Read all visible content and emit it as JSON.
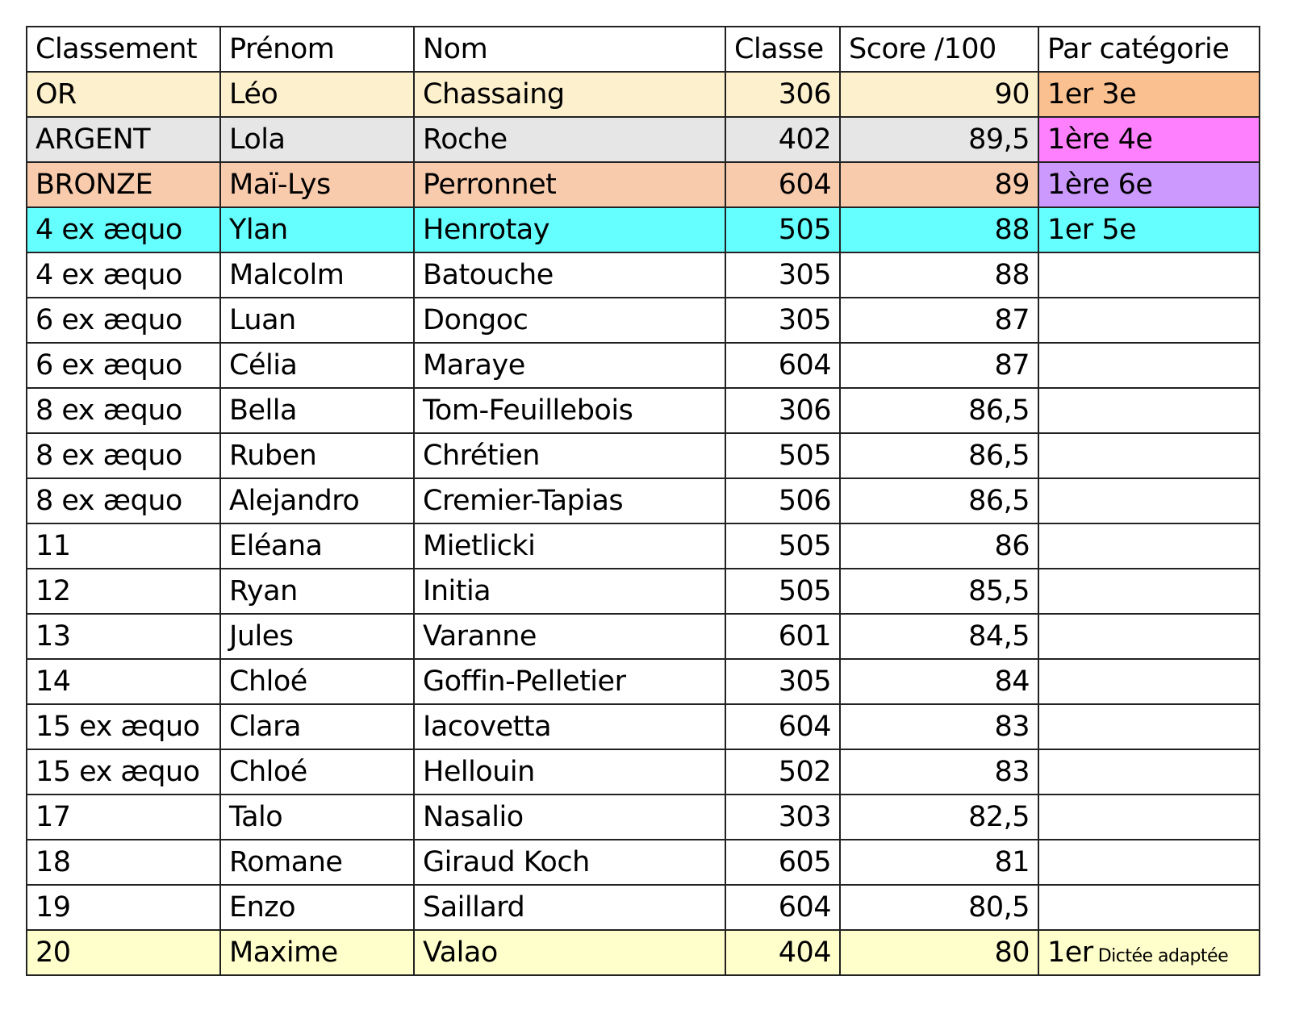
{
  "headers": [
    "Classement",
    "Prénom",
    "Nom",
    "Classe",
    "Score /100",
    "Par catégorie"
  ],
  "colors": {
    "or": "#fdf0cc",
    "argent": "#e6e6e6",
    "bronze": "#f8cbad",
    "cyan": "#66ffff",
    "cat_3e": "#fac090",
    "cat_4e": "#ff80ff",
    "cat_6e": "#cc99ff",
    "cat_5e": "#66ffff",
    "adaptee": "#ffffcc"
  },
  "rows": [
    {
      "rank": "OR",
      "first": "Léo",
      "last": "Chassaing",
      "class": "306",
      "score": "90",
      "cat": "1er 3e",
      "cat_small": "",
      "row_color": "#fdf0cc",
      "cat_color": "#fac090"
    },
    {
      "rank": "ARGENT",
      "first": "Lola",
      "last": "Roche",
      "class": "402",
      "score": "89,5",
      "cat": "1ère 4e",
      "cat_small": "",
      "row_color": "#e6e6e6",
      "cat_color": "#ff80ff"
    },
    {
      "rank": "BRONZE",
      "first": "Maï-Lys",
      "last": "Perronnet",
      "class": "604",
      "score": "89",
      "cat": "1ère 6e",
      "cat_small": "",
      "row_color": "#f8cbad",
      "cat_color": "#cc99ff"
    },
    {
      "rank": "4 ex æquo",
      "first": "Ylan",
      "last": "Henrotay",
      "class": "505",
      "score": "88",
      "cat": "1er 5e",
      "cat_small": "",
      "row_color": "#66ffff",
      "cat_color": "#66ffff"
    },
    {
      "rank": "4 ex æquo",
      "first": "Malcolm",
      "last": "Batouche",
      "class": "305",
      "score": "88",
      "cat": "",
      "cat_small": ""
    },
    {
      "rank": "6 ex æquo",
      "first": "Luan",
      "last": "Dongoc",
      "class": "305",
      "score": "87",
      "cat": "",
      "cat_small": ""
    },
    {
      "rank": "6 ex æquo",
      "first": "Célia",
      "last": "Maraye",
      "class": "604",
      "score": "87",
      "cat": "",
      "cat_small": ""
    },
    {
      "rank": "8 ex æquo",
      "first": "Bella",
      "last": "Tom-Feuillebois",
      "class": "306",
      "score": "86,5",
      "cat": "",
      "cat_small": ""
    },
    {
      "rank": "8 ex æquo",
      "first": "Ruben",
      "last": "Chrétien",
      "class": "505",
      "score": "86,5",
      "cat": "",
      "cat_small": ""
    },
    {
      "rank": "8 ex æquo",
      "first": "Alejandro",
      "last": "Cremier-Tapias",
      "class": "506",
      "score": "86,5",
      "cat": "",
      "cat_small": ""
    },
    {
      "rank": "11",
      "first": "Eléana",
      "last": "Mietlicki",
      "class": "505",
      "score": "86",
      "cat": "",
      "cat_small": ""
    },
    {
      "rank": "12",
      "first": "Ryan",
      "last": "Initia",
      "class": "505",
      "score": "85,5",
      "cat": "",
      "cat_small": ""
    },
    {
      "rank": "13",
      "first": "Jules",
      "last": "Varanne",
      "class": "601",
      "score": "84,5",
      "cat": "",
      "cat_small": ""
    },
    {
      "rank": "14",
      "first": "Chloé",
      "last": "Goffin-Pelletier",
      "class": "305",
      "score": "84",
      "cat": "",
      "cat_small": ""
    },
    {
      "rank": "15 ex æquo",
      "first": "Clara",
      "last": "Iacovetta",
      "class": "604",
      "score": "83",
      "cat": "",
      "cat_small": ""
    },
    {
      "rank": "15 ex æquo",
      "first": "Chloé",
      "last": "Hellouin",
      "class": "502",
      "score": "83",
      "cat": "",
      "cat_small": ""
    },
    {
      "rank": "17",
      "first": "Talo",
      "last": "Nasalio",
      "class": "303",
      "score": "82,5",
      "cat": "",
      "cat_small": ""
    },
    {
      "rank": "18",
      "first": "Romane",
      "last": "Giraud Koch",
      "class": "605",
      "score": "81",
      "cat": "",
      "cat_small": ""
    },
    {
      "rank": "19",
      "first": "Enzo",
      "last": "Saillard",
      "class": "604",
      "score": "80,5",
      "cat": "",
      "cat_small": ""
    },
    {
      "rank": "20",
      "first": "Maxime",
      "last": "Valao",
      "class": "404",
      "score": "80",
      "cat": "1er",
      "cat_small": "Dictée adaptée",
      "row_color": "#ffffcc",
      "cat_color": "#ffffcc"
    }
  ]
}
